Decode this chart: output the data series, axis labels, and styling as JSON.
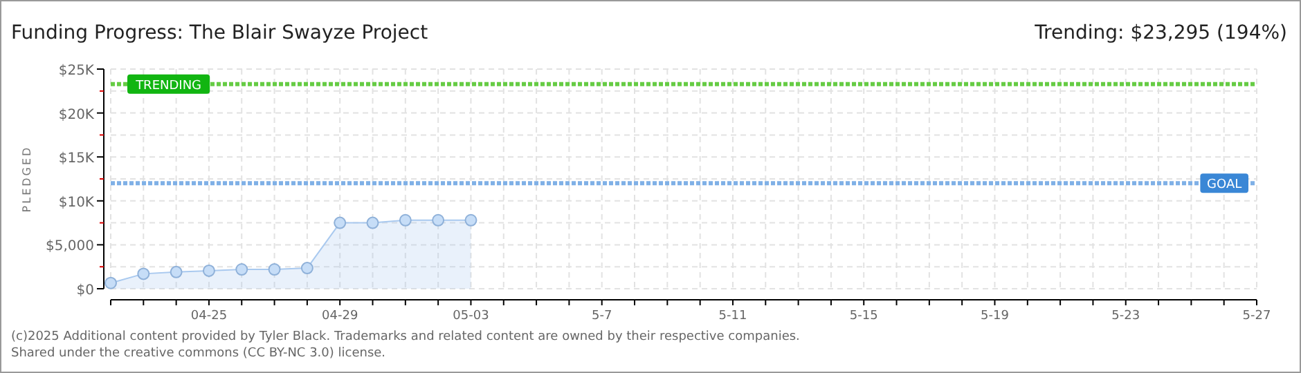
{
  "chart_data": {
    "type": "area",
    "title": "Funding Progress: The Blair Swayze Project",
    "subtitle": "Trending: $23,295 (194%)",
    "ylabel": "PLEDGED",
    "x": [
      "--04-22",
      "--04-23",
      "--04-24",
      "--04-25",
      "--04-26",
      "--04-27",
      "--04-28",
      "--04-29",
      "--04-30",
      "--05-01",
      "--05-02",
      "--05-03"
    ],
    "series": [
      {
        "color": "#a9c9ef",
        "values": [
          650,
          1700,
          1900,
          2050,
          2200,
          2200,
          2350,
          7500,
          7500,
          7800,
          7800,
          7800
        ]
      }
    ],
    "xlim": [
      "--04-22",
      "--05-27"
    ],
    "xticks": [
      {
        "value": "--04-22",
        "label": null
      },
      {
        "value": "--04-23",
        "label": null
      },
      {
        "value": "--04-24",
        "label": null
      },
      {
        "value": "--04-25",
        "label": "04-25"
      },
      {
        "value": "--04-26",
        "label": null
      },
      {
        "value": "--04-27",
        "label": null
      },
      {
        "value": "--04-28",
        "label": null
      },
      {
        "value": "--04-29",
        "label": "04-29"
      },
      {
        "value": "--04-30",
        "label": null
      },
      {
        "value": "--05-01",
        "label": null
      },
      {
        "value": "--05-02",
        "label": null
      },
      {
        "value": "--05-03",
        "label": "05-03"
      },
      {
        "value": "--05-04",
        "label": null
      },
      {
        "value": "--05-05",
        "label": null
      },
      {
        "value": "--05-06",
        "label": null
      },
      {
        "value": "--05-07",
        "label": "5-7"
      },
      {
        "value": "--05-08",
        "label": null
      },
      {
        "value": "--05-09",
        "label": null
      },
      {
        "value": "--05-10",
        "label": null
      },
      {
        "value": "--05-11",
        "label": "5-11"
      },
      {
        "value": "--05-12",
        "label": null
      },
      {
        "value": "--05-13",
        "label": null
      },
      {
        "value": "--05-14",
        "label": null
      },
      {
        "value": "--05-15",
        "label": "5-15"
      },
      {
        "value": "--05-16",
        "label": null
      },
      {
        "value": "--05-17",
        "label": null
      },
      {
        "value": "--05-18",
        "label": null
      },
      {
        "value": "--05-19",
        "label": "5-19"
      },
      {
        "value": "--05-20",
        "label": null
      },
      {
        "value": "--05-21",
        "label": null
      },
      {
        "value": "--05-22",
        "label": null
      },
      {
        "value": "--05-23",
        "label": "5-23"
      },
      {
        "value": "--05-24",
        "label": null
      },
      {
        "value": "--05-25",
        "label": null
      },
      {
        "value": "--05-26",
        "label": null
      },
      {
        "value": "--05-27",
        "label": "5-27"
      }
    ],
    "ylim": [
      0,
      25000
    ],
    "yticks": [
      {
        "value": 0,
        "label": "$0"
      },
      {
        "value": 2500,
        "label": null
      },
      {
        "value": 5000,
        "label": "$5,000"
      },
      {
        "value": 7500,
        "label": null
      },
      {
        "value": 10000,
        "label": "$10K"
      },
      {
        "value": 12500,
        "label": null
      },
      {
        "value": 15000,
        "label": "$15K"
      },
      {
        "value": 17500,
        "label": null
      },
      {
        "value": 20000,
        "label": "$20K"
      },
      {
        "value": 22500,
        "label": null
      },
      {
        "value": 25000,
        "label": "$25K"
      }
    ],
    "grid": true,
    "marker": "circle",
    "ref_lines": [
      {
        "axis": "y",
        "value": 23295,
        "label": "TRENDING",
        "color": "#66cc44",
        "line_style": "dotted"
      },
      {
        "axis": "y",
        "value": 12000,
        "label": "GOAL",
        "color": "#7fb0e6",
        "line_style": "dotted"
      }
    ],
    "annotations": [
      "(c)2025 Additional content provided by Tyler Black. Trademarks and related content are owned by their respective companies.",
      "Shared under the creative commons (CC BY-NC 3.0) license."
    ]
  }
}
